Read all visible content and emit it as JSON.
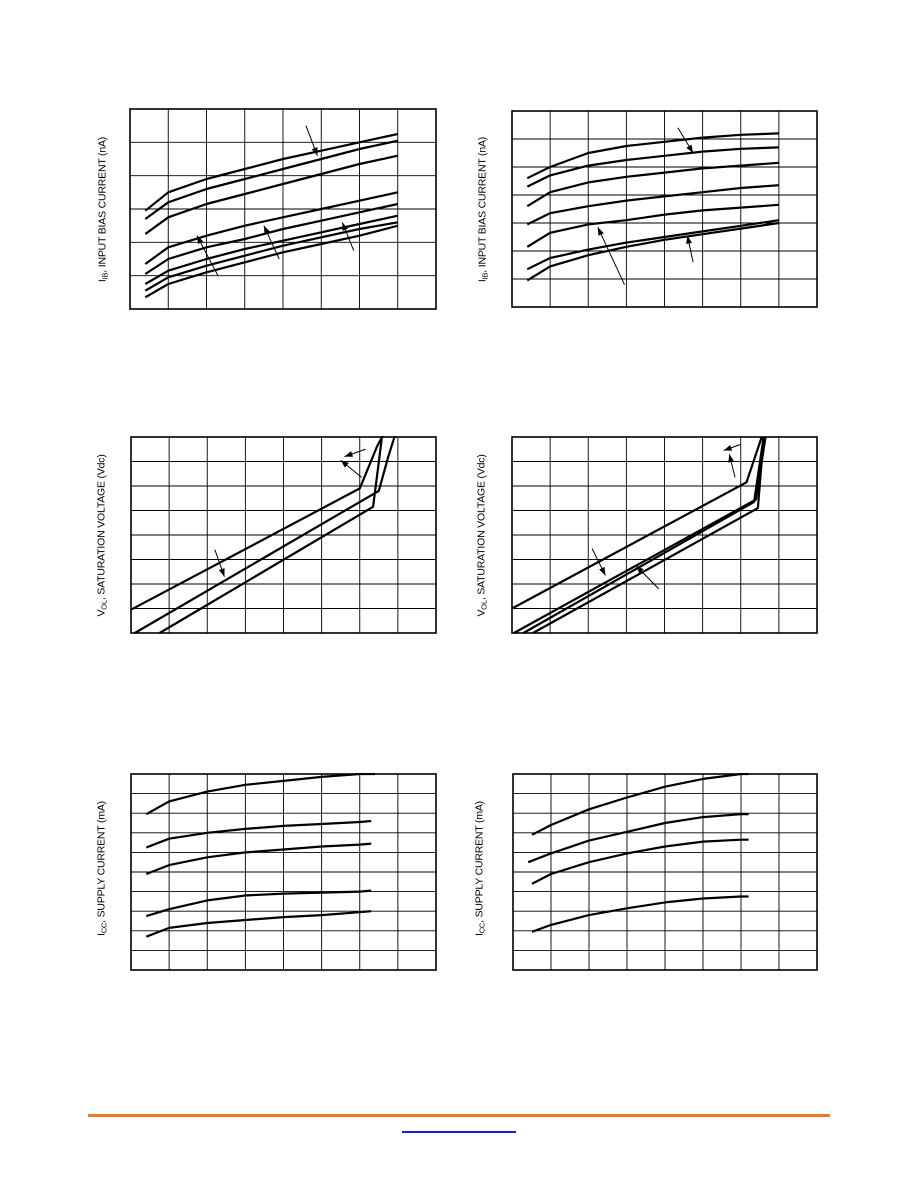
{
  "charts": [
    {
      "ylabel_main": "I",
      "ylabel_sub": "IB",
      "ylabel_rest": ", INPUT BIAS CURRENT (nA)",
      "chart_data": {
        "type": "line",
        "grid": true,
        "xlim": [
          0,
          8
        ],
        "ylim": [
          0,
          6
        ],
        "series": [
          {
            "x": [
              0.4,
              1.0,
              2.0,
              3.0,
              4.0,
              5.0,
              6.0,
              7.0
            ],
            "y": [
              2.95,
              3.5,
              3.9,
              4.2,
              4.5,
              4.75,
              5.0,
              5.25
            ]
          },
          {
            "x": [
              0.4,
              1.0,
              2.0,
              3.0,
              4.0,
              5.0,
              6.0,
              7.0
            ],
            "y": [
              2.7,
              3.2,
              3.6,
              3.9,
              4.2,
              4.5,
              4.8,
              5.05
            ]
          },
          {
            "x": [
              0.4,
              1.0,
              2.0,
              3.0,
              4.0,
              5.0,
              6.0,
              7.0
            ],
            "y": [
              2.25,
              2.75,
              3.15,
              3.45,
              3.75,
              4.05,
              4.35,
              4.6
            ]
          },
          {
            "x": [
              0.4,
              1.0,
              2.0,
              3.0,
              4.0,
              5.0,
              6.0,
              7.0
            ],
            "y": [
              1.35,
              1.85,
              2.2,
              2.5,
              2.75,
              3.0,
              3.25,
              3.5
            ]
          },
          {
            "x": [
              0.4,
              1.0,
              2.0,
              3.0,
              4.0,
              5.0,
              6.0,
              7.0
            ],
            "y": [
              1.05,
              1.5,
              1.85,
              2.1,
              2.4,
              2.65,
              2.9,
              3.15
            ]
          },
          {
            "x": [
              0.4,
              1.0,
              2.0,
              3.0,
              4.0,
              5.0,
              6.0,
              7.0
            ],
            "y": [
              0.75,
              1.15,
              1.5,
              1.8,
              2.05,
              2.3,
              2.55,
              2.8
            ]
          },
          {
            "x": [
              0.4,
              1.0,
              2.0,
              3.0,
              4.0,
              5.0,
              6.0,
              7.0
            ],
            "y": [
              0.55,
              0.95,
              1.3,
              1.6,
              1.9,
              2.15,
              2.4,
              2.6
            ]
          },
          {
            "x": [
              0.4,
              1.0,
              2.0,
              3.0,
              4.0,
              5.0,
              6.0,
              7.0
            ],
            "y": [
              0.35,
              0.75,
              1.1,
              1.4,
              1.7,
              1.95,
              2.2,
              2.5
            ]
          }
        ],
        "arrows": [
          {
            "from": [
              4.6,
              5.5
            ],
            "to": [
              4.9,
              4.6
            ]
          },
          {
            "from": [
              2.3,
              1.0
            ],
            "to": [
              1.75,
              2.2
            ]
          },
          {
            "from": [
              3.9,
              1.5
            ],
            "to": [
              3.5,
              2.5
            ]
          },
          {
            "from": [
              5.85,
              1.75
            ],
            "to": [
              5.55,
              2.6
            ]
          }
        ]
      }
    },
    {
      "ylabel_main": "I",
      "ylabel_sub": "IB",
      "ylabel_rest": ", INPUT BIAS CURRENT (nA)",
      "chart_data": {
        "type": "line",
        "grid": true,
        "xlim": [
          0,
          8
        ],
        "ylim": [
          0,
          7
        ],
        "series": [
          {
            "x": [
              0.4,
              1.0,
              2.0,
              3.0,
              4.0,
              5.0,
              6.0,
              7.0
            ],
            "y": [
              4.6,
              5.0,
              5.5,
              5.75,
              5.9,
              6.05,
              6.15,
              6.2
            ]
          },
          {
            "x": [
              0.4,
              1.0,
              2.0,
              3.0,
              4.0,
              5.0,
              6.0,
              7.0
            ],
            "y": [
              4.3,
              4.7,
              5.05,
              5.25,
              5.4,
              5.55,
              5.65,
              5.7
            ]
          },
          {
            "x": [
              0.4,
              1.0,
              2.0,
              3.0,
              4.0,
              5.0,
              6.0,
              7.0
            ],
            "y": [
              3.6,
              4.1,
              4.45,
              4.65,
              4.8,
              4.95,
              5.05,
              5.15
            ]
          },
          {
            "x": [
              0.4,
              1.0,
              2.0,
              3.0,
              4.0,
              5.0,
              6.0,
              7.0
            ],
            "y": [
              2.95,
              3.35,
              3.6,
              3.8,
              3.95,
              4.1,
              4.25,
              4.35
            ]
          },
          {
            "x": [
              0.4,
              1.0,
              2.0,
              3.0,
              4.0,
              5.0,
              6.0,
              7.0
            ],
            "y": [
              2.15,
              2.65,
              2.95,
              3.1,
              3.3,
              3.45,
              3.55,
              3.65
            ]
          },
          {
            "x": [
              0.4,
              1.0,
              2.0,
              3.0,
              4.0,
              5.0,
              6.0,
              7.0
            ],
            "y": [
              1.35,
              1.75,
              2.05,
              2.3,
              2.5,
              2.7,
              2.9,
              3.1
            ]
          },
          {
            "x": [
              0.4,
              1.0,
              2.0,
              3.0,
              4.0,
              5.0,
              6.0,
              7.0
            ],
            "y": [
              0.95,
              1.45,
              1.85,
              2.15,
              2.4,
              2.6,
              2.8,
              3.0
            ]
          }
        ],
        "arrows": [
          {
            "from": [
              4.35,
              6.4
            ],
            "to": [
              4.75,
              5.5
            ]
          },
          {
            "from": [
              2.95,
              0.8
            ],
            "to": [
              2.25,
              2.85
            ]
          },
          {
            "from": [
              4.75,
              1.6
            ],
            "to": [
              4.6,
              2.55
            ]
          }
        ]
      }
    },
    {
      "ylabel_main": "V",
      "ylabel_sub": "OL",
      "ylabel_rest": ", SATURATION VOLTAGE (Vdc)",
      "chart_data": {
        "type": "line",
        "grid": true,
        "xlim": [
          0,
          8
        ],
        "ylim": [
          0,
          8
        ],
        "series": [
          {
            "x": [
              0.0,
              6.0,
              6.45,
              6.65
            ],
            "y": [
              0.95,
              5.9,
              7.6,
              8.2
            ]
          },
          {
            "x": [
              0.1,
              6.5,
              6.75,
              6.95
            ],
            "y": [
              0.0,
              5.8,
              7.2,
              8.2
            ]
          },
          {
            "x": [
              0.75,
              6.35,
              6.6
            ],
            "y": [
              0.0,
              5.15,
              8.2
            ]
          }
        ],
        "arrows": [
          {
            "from": [
              2.2,
              3.4
            ],
            "to": [
              2.45,
              2.3
            ]
          },
          {
            "from": [
              6.15,
              7.5
            ],
            "to": [
              5.6,
              7.2
            ]
          },
          {
            "from": [
              6.05,
              6.35
            ],
            "to": [
              5.5,
              7.05
            ]
          }
        ]
      }
    },
    {
      "ylabel_main": "V",
      "ylabel_sub": "OL",
      "ylabel_rest": ", SATURATION VOLTAGE (Vdc)",
      "chart_data": {
        "type": "line",
        "grid": true,
        "xlim": [
          0,
          8
        ],
        "ylim": [
          0,
          8
        ],
        "series": [
          {
            "x": [
              0.0,
              6.15,
              6.55
            ],
            "y": [
              1.0,
              6.15,
              8.0
            ]
          },
          {
            "x": [
              0.3,
              6.35,
              6.6
            ],
            "y": [
              0.0,
              5.35,
              8.0
            ]
          },
          {
            "x": [
              0.55,
              6.45,
              6.6
            ],
            "y": [
              0.0,
              5.1,
              8.0
            ]
          },
          {
            "x": [
              0.05,
              6.4,
              6.65
            ],
            "y": [
              0.0,
              5.45,
              8.0
            ]
          }
        ],
        "arrows": [
          {
            "from": [
              2.1,
              3.45
            ],
            "to": [
              2.45,
              2.35
            ]
          },
          {
            "from": [
              3.85,
              1.8
            ],
            "to": [
              3.25,
              2.75
            ]
          },
          {
            "from": [
              6.0,
              7.7
            ],
            "to": [
              5.55,
              7.45
            ]
          },
          {
            "from": [
              5.85,
              6.35
            ],
            "to": [
              5.7,
              7.3
            ]
          }
        ]
      }
    },
    {
      "ylabel_main": "I",
      "ylabel_sub": "CC",
      "ylabel_rest": ", SUPPLY CURRENT (mA)",
      "chart_data": {
        "type": "line",
        "grid": true,
        "xlim": [
          0,
          8
        ],
        "ylim": [
          0,
          10
        ],
        "series": [
          {
            "x": [
              0.4,
              1.0,
              2.0,
              3.0,
              4.0,
              5.0,
              6.0,
              6.4
            ],
            "y": [
              7.95,
              8.6,
              9.1,
              9.45,
              9.65,
              9.85,
              10.0,
              10.0
            ]
          },
          {
            "x": [
              0.4,
              1.0,
              2.0,
              3.0,
              4.0,
              5.0,
              6.0,
              6.3
            ],
            "y": [
              6.25,
              6.7,
              7.0,
              7.2,
              7.35,
              7.45,
              7.55,
              7.6
            ]
          },
          {
            "x": [
              0.4,
              1.0,
              2.0,
              3.0,
              4.0,
              5.0,
              6.0,
              6.3
            ],
            "y": [
              4.9,
              5.35,
              5.75,
              6.0,
              6.15,
              6.3,
              6.4,
              6.45
            ]
          },
          {
            "x": [
              0.4,
              1.0,
              2.0,
              3.0,
              4.0,
              5.0,
              6.0,
              6.3
            ],
            "y": [
              2.75,
              3.1,
              3.55,
              3.8,
              3.9,
              3.95,
              4.0,
              4.05
            ]
          },
          {
            "x": [
              0.4,
              1.0,
              2.0,
              3.0,
              4.0,
              5.0,
              6.0,
              6.3
            ],
            "y": [
              1.7,
              2.15,
              2.4,
              2.55,
              2.7,
              2.8,
              2.95,
              3.0
            ]
          }
        ]
      }
    },
    {
      "ylabel_main": "I",
      "ylabel_sub": "CC",
      "ylabel_rest": ", SUPPLY CURRENT (mA)",
      "chart_data": {
        "type": "line",
        "grid": true,
        "xlim": [
          0,
          8
        ],
        "ylim": [
          0,
          10
        ],
        "series": [
          {
            "x": [
              0.5,
              1.0,
              2.0,
              3.0,
              4.0,
              5.0,
              6.0,
              6.2
            ],
            "y": [
              6.9,
              7.4,
              8.2,
              8.8,
              9.35,
              9.75,
              10.0,
              10.0
            ]
          },
          {
            "x": [
              0.4,
              1.0,
              2.0,
              3.0,
              4.0,
              5.0,
              6.0,
              6.2
            ],
            "y": [
              5.5,
              5.95,
              6.6,
              7.05,
              7.5,
              7.8,
              7.95,
              7.95
            ]
          },
          {
            "x": [
              0.5,
              1.0,
              2.0,
              3.0,
              4.0,
              5.0,
              6.0,
              6.2
            ],
            "y": [
              4.4,
              4.9,
              5.5,
              5.95,
              6.3,
              6.55,
              6.65,
              6.65
            ]
          },
          {
            "x": [
              0.5,
              1.0,
              2.0,
              3.0,
              4.0,
              5.0,
              6.0,
              6.2
            ],
            "y": [
              1.95,
              2.3,
              2.8,
              3.15,
              3.45,
              3.65,
              3.75,
              3.75
            ]
          }
        ]
      }
    }
  ]
}
